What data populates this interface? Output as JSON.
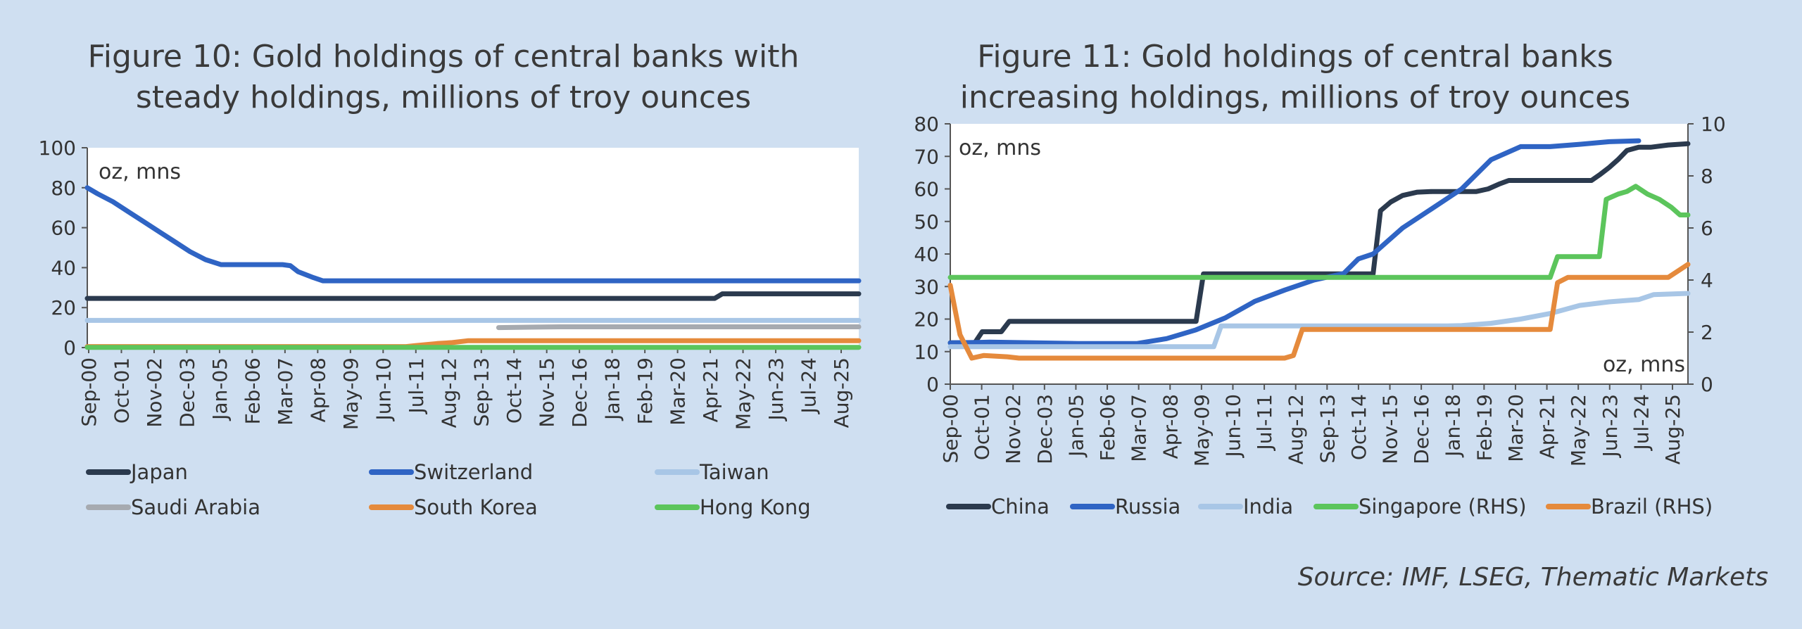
{
  "source": "Source: IMF, LSEG, Thematic Markets",
  "colors": {
    "Japan": "#2b3a4e",
    "Switzerland": "#2f64c4",
    "Taiwan": "#a8c6e6",
    "Saudi Arabia": "#a6aab0",
    "South Korea": "#e58a3c",
    "Hong Kong": "#5cc55c",
    "China": "#2b3a4e",
    "Russia": "#2f64c4",
    "India": "#a8c6e6",
    "Singapore (RHS)": "#5cc55c",
    "Brazil (RHS)": "#e58a3c"
  },
  "chart_data": [
    {
      "type": "line",
      "title": "Figure 10: Gold holdings of central banks with steady holdings, millions of troy ounces",
      "title_lines": [
        "Figure 10: Gold holdings of central banks with",
        "steady holdings, millions of troy ounces"
      ],
      "annotation": "oz, mns",
      "xlabel": "",
      "ylabel": "",
      "ylim": [
        0,
        100
      ],
      "yticks": [
        "0",
        "20",
        "40",
        "60",
        "80",
        "100"
      ],
      "xlim": [
        2000.67,
        2025.67
      ],
      "x_tick_labels": [
        "Sep-00",
        "Oct-01",
        "Nov-02",
        "Dec-03",
        "Jan-05",
        "Feb-06",
        "Mar-07",
        "Apr-08",
        "May-09",
        "Jun-10",
        "Jul-11",
        "Aug-12",
        "Sep-13",
        "Oct-14",
        "Nov-15",
        "Dec-16",
        "Jan-18",
        "Feb-19",
        "Mar-20",
        "Apr-21",
        "May-22",
        "Jun-23",
        "Jul-24",
        "Aug-25"
      ],
      "legend": [
        "Japan",
        "Switzerland",
        "Taiwan",
        "Saudi Arabia",
        "South Korea",
        "Hong Kong"
      ],
      "series": [
        {
          "name": "Japan",
          "x": [
            2000.67,
            2021.0,
            2021.25,
            2025.67
          ],
          "y": [
            24.6,
            24.6,
            26.9,
            26.9
          ]
        },
        {
          "name": "Switzerland",
          "x": [
            2000.67,
            2001.0,
            2001.5,
            2002.0,
            2002.5,
            2003.0,
            2003.5,
            2004.0,
            2004.5,
            2005.0,
            2005.5,
            2006.0,
            2006.5,
            2007.0,
            2007.25,
            2007.5,
            2008.0,
            2008.3,
            2009.0,
            2025.67
          ],
          "y": [
            80,
            77,
            73,
            68,
            63,
            58,
            53,
            48,
            44,
            41.5,
            41.5,
            41.5,
            41.5,
            41.5,
            41,
            38,
            35,
            33.4,
            33.4,
            33.4
          ]
        },
        {
          "name": "Taiwan",
          "x": [
            2000.67,
            2025.67
          ],
          "y": [
            13.6,
            13.6
          ]
        },
        {
          "name": "Saudi Arabia",
          "x": [
            2014.0,
            2015.0,
            2016.0,
            2025.67
          ],
          "y": [
            10.0,
            10.2,
            10.4,
            10.4
          ]
        },
        {
          "name": "South Korea",
          "x": [
            2000.67,
            2011.0,
            2011.3,
            2012.0,
            2012.5,
            2013.0,
            2025.67
          ],
          "y": [
            0.5,
            0.5,
            1.0,
            2.0,
            2.5,
            3.4,
            3.4
          ]
        },
        {
          "name": "Hong Kong",
          "x": [
            2000.67,
            2025.67
          ],
          "y": [
            0.1,
            0.1
          ]
        }
      ]
    },
    {
      "type": "line",
      "title": "Figure 11: Gold holdings of central banks increasing holdings, millions of troy ounces",
      "title_lines": [
        "Figure 11: Gold holdings of central banks",
        "increasing holdings, millions of troy ounces"
      ],
      "annotation_left": "oz, mns",
      "annotation_right": "oz, mns",
      "ylim": [
        0,
        80
      ],
      "yticks": [
        "0",
        "10",
        "20",
        "30",
        "40",
        "50",
        "60",
        "70",
        "80"
      ],
      "y2lim": [
        0,
        10
      ],
      "y2ticks": [
        "0",
        "2",
        "4",
        "6",
        "8",
        "10"
      ],
      "xlim": [
        2000.67,
        2025.67
      ],
      "x_tick_labels": [
        "Sep-00",
        "Oct-01",
        "Nov-02",
        "Dec-03",
        "Jan-05",
        "Feb-06",
        "Mar-07",
        "Apr-08",
        "May-09",
        "Jun-10",
        "Jul-11",
        "Aug-12",
        "Sep-13",
        "Oct-14",
        "Nov-15",
        "Dec-16",
        "Jan-18",
        "Feb-19",
        "Mar-20",
        "Apr-21",
        "May-22",
        "Jun-23",
        "Jul-24",
        "Aug-25"
      ],
      "legend": [
        "China",
        "Russia",
        "India",
        "Singapore (RHS)",
        "Brazil (RHS)"
      ],
      "series": [
        {
          "name": "China",
          "axis": "left",
          "x": [
            2000.67,
            2001.5,
            2001.75,
            2002.4,
            2002.67,
            2009.0,
            2009.25,
            2015.0,
            2015.25,
            2015.6,
            2016.0,
            2016.5,
            2017.0,
            2018.5,
            2018.9,
            2019.3,
            2019.6,
            2022.4,
            2022.7,
            2023.0,
            2023.3,
            2023.6,
            2024.0,
            2024.4,
            2025.0,
            2025.67
          ],
          "y": [
            12.7,
            12.7,
            16.1,
            16.1,
            19.3,
            19.3,
            33.9,
            33.9,
            53.3,
            56.0,
            58.0,
            59.0,
            59.2,
            59.2,
            60.0,
            61.6,
            62.6,
            62.6,
            64.5,
            66.6,
            69.0,
            71.8,
            72.8,
            72.8,
            73.5,
            73.9
          ]
        },
        {
          "name": "Russia",
          "axis": "left",
          "x": [
            2000.67,
            2001.5,
            2002.0,
            2005.0,
            2007.0,
            2008.0,
            2009.0,
            2010.0,
            2011.0,
            2012.0,
            2013.0,
            2014.0,
            2014.5,
            2015.0,
            2016.0,
            2017.0,
            2018.0,
            2019.0,
            2020.0,
            2021.0,
            2022.0,
            2023.0,
            2024.0
          ],
          "y": [
            12.7,
            12.8,
            12.9,
            12.5,
            12.5,
            14.0,
            16.7,
            20.4,
            25.5,
            28.9,
            32.0,
            34.0,
            38.5,
            40.0,
            48.0,
            54.0,
            60.0,
            69.0,
            73.0,
            73.0,
            73.7,
            74.5,
            74.8
          ]
        },
        {
          "name": "India",
          "axis": "left",
          "x": [
            2000.67,
            2009.6,
            2009.85,
            2017.5,
            2018.0,
            2019.0,
            2020.0,
            2021.0,
            2022.0,
            2023.0,
            2024.0,
            2024.5,
            2025.67
          ],
          "y": [
            11.5,
            11.5,
            17.9,
            17.9,
            18.0,
            18.7,
            20.0,
            21.7,
            24.2,
            25.3,
            26.0,
            27.5,
            27.9
          ]
        },
        {
          "name": "Singapore (RHS)",
          "axis": "right",
          "x": [
            2000.67,
            2021.0,
            2021.25,
            2022.67,
            2022.9,
            2023.3,
            2023.6,
            2023.9,
            2024.3,
            2024.7,
            2025.1,
            2025.4,
            2025.67
          ],
          "y": [
            4.1,
            4.1,
            4.9,
            4.9,
            7.1,
            7.3,
            7.4,
            7.6,
            7.3,
            7.1,
            6.8,
            6.5,
            6.5
          ]
        },
        {
          "name": "Brazil (RHS)",
          "axis": "right",
          "x": [
            2000.67,
            2001.0,
            2001.4,
            2001.8,
            2002.6,
            2003.0,
            2012.0,
            2012.3,
            2012.6,
            2021.0,
            2021.25,
            2021.6,
            2025.0,
            2025.67
          ],
          "y": [
            3.8,
            1.9,
            1.0,
            1.1,
            1.05,
            1.0,
            1.0,
            1.1,
            2.1,
            2.1,
            3.9,
            4.1,
            4.1,
            4.6
          ]
        }
      ]
    }
  ]
}
